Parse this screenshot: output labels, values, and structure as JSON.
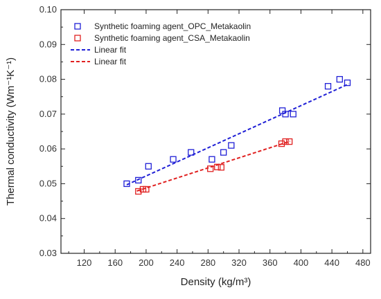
{
  "chart_data": {
    "type": "scatter",
    "xlabel": "Density (kg/m³)",
    "ylabel": "Thermal conductivity (Wm⁻¹K⁻¹)",
    "xlim": [
      90,
      490
    ],
    "ylim": [
      0.03,
      0.1
    ],
    "xticks": [
      120,
      160,
      200,
      240,
      280,
      320,
      360,
      400,
      440,
      480
    ],
    "yticks": [
      0.03,
      0.04,
      0.05,
      0.06,
      0.07,
      0.08,
      0.09,
      0.1
    ],
    "ytick_labels": [
      "0.03",
      "0.04",
      "0.05",
      "0.06",
      "0.07",
      "0.08",
      "0.09",
      "0.10"
    ],
    "grid": false,
    "legend_position": "top-left",
    "series": [
      {
        "name": "Synthetic foaming agent_OPC_Metakaolin",
        "marker": "open-square",
        "color": "#1f1fd6",
        "points": [
          [
            175,
            0.05
          ],
          [
            190,
            0.051
          ],
          [
            203,
            0.055
          ],
          [
            235,
            0.057
          ],
          [
            258,
            0.059
          ],
          [
            285,
            0.057
          ],
          [
            300,
            0.059
          ],
          [
            310,
            0.061
          ],
          [
            376,
            0.071
          ],
          [
            380,
            0.07
          ],
          [
            390,
            0.07
          ],
          [
            435,
            0.078
          ],
          [
            450,
            0.08
          ],
          [
            460,
            0.079
          ]
        ]
      },
      {
        "name": "Synthetic foaming agent_CSA_Metakaolin",
        "marker": "open-square",
        "color": "#e02020",
        "points": [
          [
            190,
            0.0478
          ],
          [
            196,
            0.0484
          ],
          [
            200,
            0.0484
          ],
          [
            283,
            0.0543
          ],
          [
            292,
            0.0548
          ],
          [
            297,
            0.0547
          ],
          [
            375,
            0.0615
          ],
          [
            380,
            0.0621
          ],
          [
            385,
            0.0621
          ]
        ]
      }
    ],
    "fits": [
      {
        "name": "Linear fit",
        "style": "dashed",
        "color": "#1f1fd6",
        "from": [
          175,
          0.0497
        ],
        "to": [
          462,
          0.0787
        ]
      },
      {
        "name": "Linear fit",
        "style": "dashed",
        "color": "#e02020",
        "from": [
          188,
          0.0479
        ],
        "to": [
          386,
          0.0622
        ]
      }
    ]
  }
}
